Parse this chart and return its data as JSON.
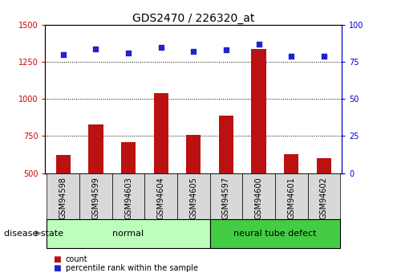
{
  "title": "GDS2470 / 226320_at",
  "samples": [
    "GSM94598",
    "GSM94599",
    "GSM94603",
    "GSM94604",
    "GSM94605",
    "GSM94597",
    "GSM94600",
    "GSM94601",
    "GSM94602"
  ],
  "counts": [
    620,
    830,
    710,
    1040,
    760,
    890,
    1340,
    630,
    600
  ],
  "percentiles": [
    80,
    84,
    81,
    85,
    82,
    83,
    87,
    79,
    79
  ],
  "groups": [
    {
      "label": "normal",
      "start": 0,
      "end": 5,
      "color": "#bbffbb"
    },
    {
      "label": "neural tube defect",
      "start": 5,
      "end": 9,
      "color": "#44cc44"
    }
  ],
  "bar_color": "#bb1111",
  "dot_color": "#2222cc",
  "left_axis_color": "#cc0000",
  "right_axis_color": "#0000cc",
  "ylim_left": [
    500,
    1500
  ],
  "ylim_right": [
    0,
    100
  ],
  "left_ticks": [
    500,
    750,
    1000,
    1250,
    1500
  ],
  "right_ticks": [
    0,
    25,
    50,
    75,
    100
  ],
  "bar_width": 0.45,
  "figsize": [
    4.9,
    3.45
  ],
  "dpi": 100,
  "tick_label_fontsize": 7,
  "title_fontsize": 10,
  "legend_fontsize": 7,
  "group_label_fontsize": 8,
  "disease_state_fontsize": 8,
  "background_color": "#ffffff",
  "grid_color": "#000000",
  "xtick_bg_color": "#d8d8d8"
}
